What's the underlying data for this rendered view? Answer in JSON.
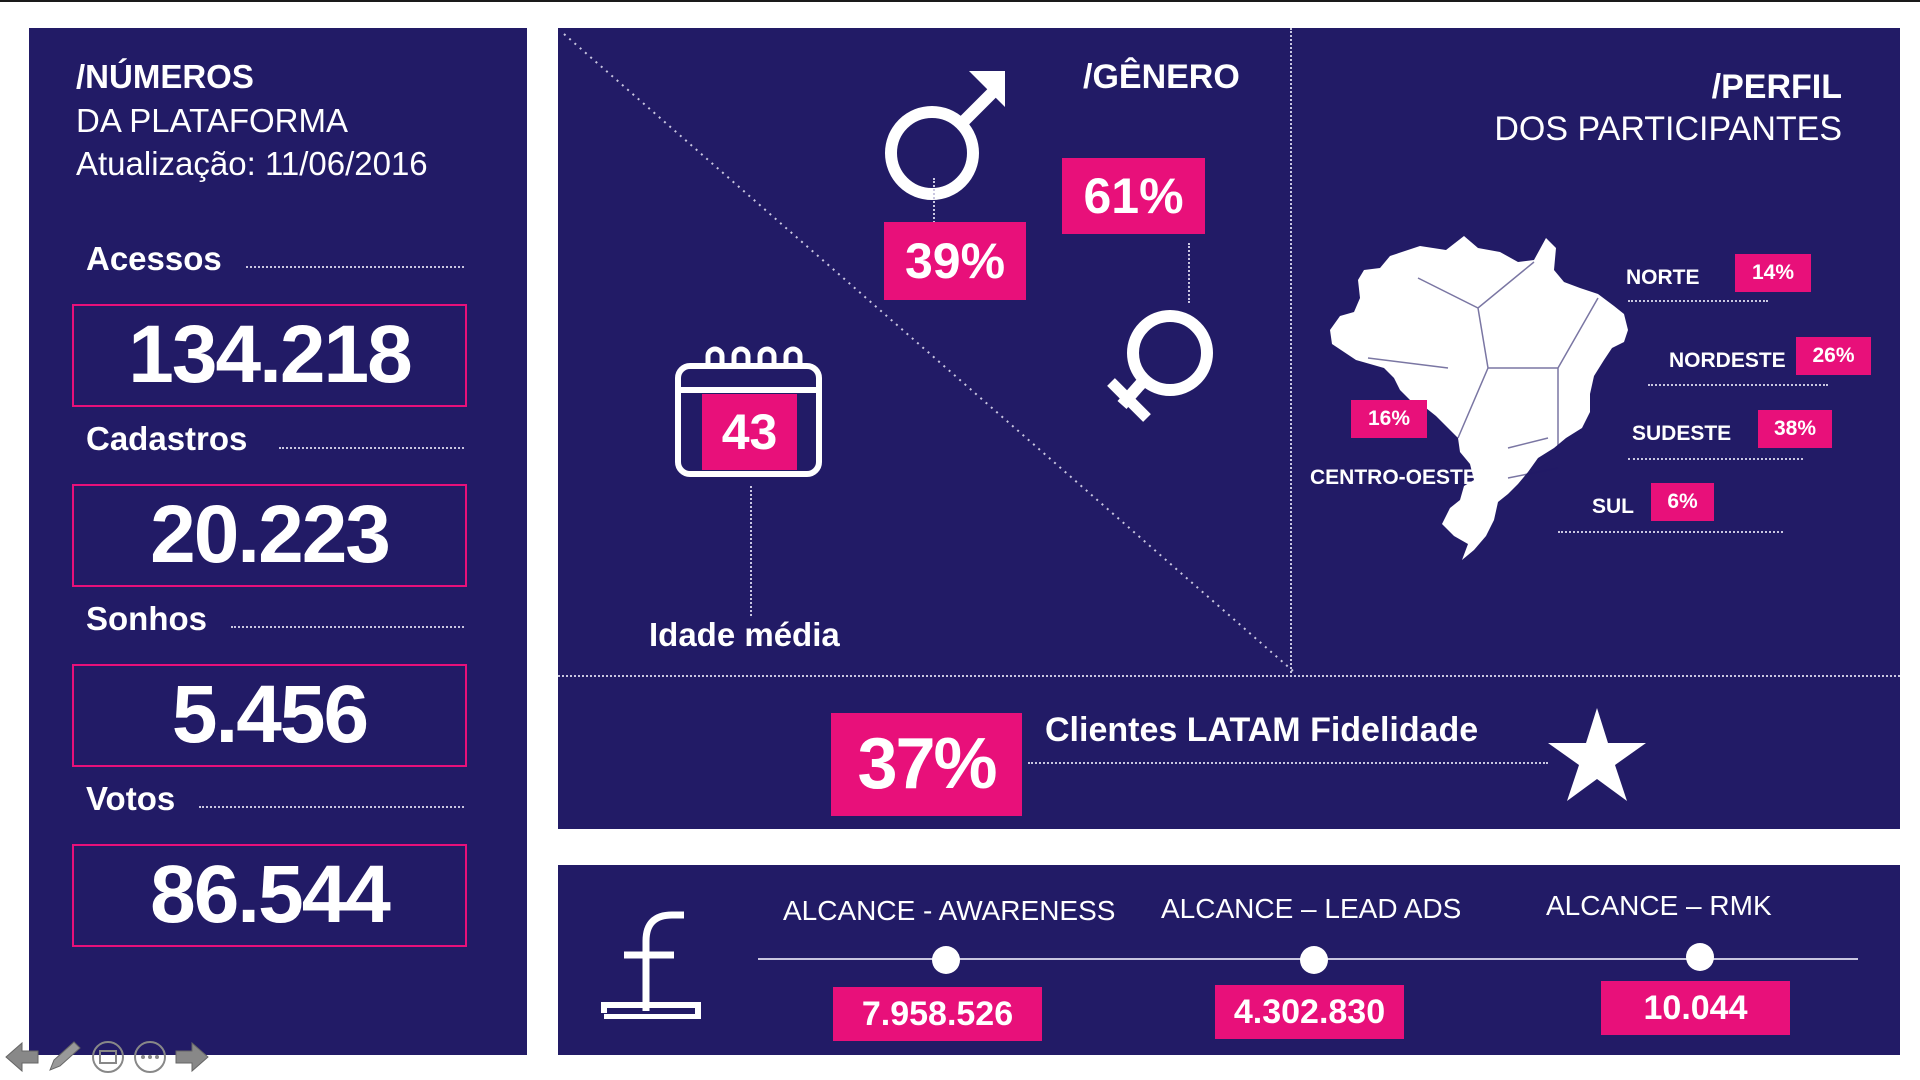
{
  "numbers": {
    "title": "/NÚMEROS",
    "subtitle": "DA PLATAFORMA",
    "update": "Atualização: 11/06/2016",
    "metrics": [
      {
        "label": "Acessos",
        "value": "134.218"
      },
      {
        "label": "Cadastros",
        "value": "20.223"
      },
      {
        "label": "Sonhos",
        "value": "5.456"
      },
      {
        "label": "Votos",
        "value": "86.544"
      }
    ]
  },
  "gender": {
    "title": "/GÊNERO",
    "male_pct": "39%",
    "female_pct": "61%"
  },
  "age": {
    "value": "43",
    "label": "Idade média"
  },
  "profile": {
    "title": "/PERFIL",
    "subtitle": "DOS PARTICIPANTES",
    "regions": [
      {
        "name": "NORTE",
        "pct": "14%"
      },
      {
        "name": "NORDESTE",
        "pct": "26%"
      },
      {
        "name": "CENTRO-OESTE",
        "pct": "16%"
      },
      {
        "name": "SUDESTE",
        "pct": "38%"
      },
      {
        "name": "SUL",
        "pct": "6%"
      }
    ]
  },
  "latam": {
    "pct": "37%",
    "label": "Clientes LATAM Fidelidade"
  },
  "facebook": {
    "items": [
      {
        "label": "ALCANCE - AWARENESS",
        "value": "7.958.526"
      },
      {
        "label": "ALCANCE – LEAD ADS",
        "value": "4.302.830"
      },
      {
        "label": "ALCANCE – RMK",
        "value": "10.044"
      }
    ]
  },
  "colors": {
    "panel": "#221b66",
    "accent": "#e8107a",
    "text": "#ffffff"
  },
  "icons": [
    "male-symbol-icon",
    "female-symbol-icon",
    "calendar-icon",
    "brazil-map-icon",
    "star-icon",
    "facebook-icon",
    "prev-arrow-icon",
    "pen-icon",
    "screen-icon",
    "menu-icon",
    "next-arrow-icon"
  ]
}
